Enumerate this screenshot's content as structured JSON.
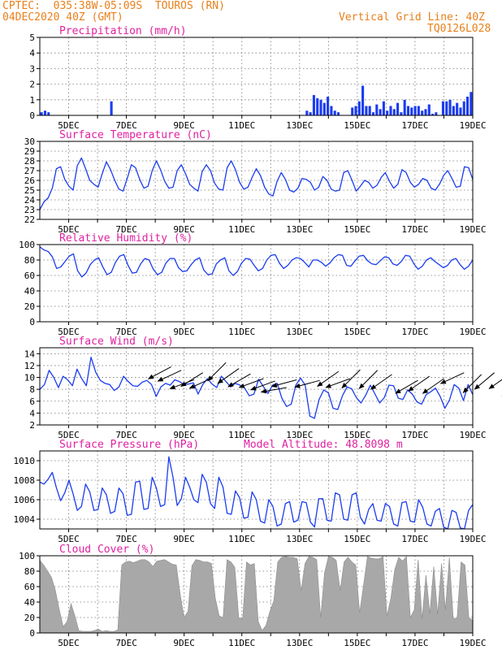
{
  "header": {
    "line1": "CPTEC:  035:38W-05:09S  TOUROS (RN)",
    "line2": "04DEC2020 40Z (GMT)",
    "right1": "Vertical Grid Line: 40Z",
    "right2": "TQ0126L028"
  },
  "colors": {
    "header": "#e8801c",
    "title": "#e020a0",
    "series": "#1a3cf0",
    "fill": "#a8a8a8",
    "arrow": "#000000"
  },
  "x_axis": {
    "range": [
      "2020-12-04T00",
      "2020-12-19T00"
    ],
    "tick_labels": [
      "5DEC",
      "7DEC",
      "9DEC",
      "11DEC",
      "13DEC",
      "15DEC",
      "17DEC",
      "19DEC"
    ]
  },
  "chart_data": [
    {
      "type": "bar",
      "title": "Precipitation (mm/h)",
      "ylim": [
        0,
        5
      ],
      "yticks": [
        "0",
        "1",
        "2",
        "3",
        "4",
        "5"
      ],
      "x_start": "2020-12-04T00",
      "step_hours": 3,
      "values": [
        0.2,
        0.3,
        0.2,
        0,
        0,
        0,
        0,
        0,
        0,
        0,
        0,
        0,
        0,
        0,
        0,
        0,
        0,
        0,
        0,
        0,
        0.9,
        0,
        0,
        0,
        0,
        0,
        0,
        0,
        0,
        0,
        0,
        0,
        0,
        0,
        0,
        0,
        0,
        0,
        0,
        0,
        0,
        0,
        0,
        0,
        0,
        0,
        0,
        0,
        0,
        0,
        0,
        0,
        0,
        0,
        0,
        0,
        0,
        0,
        0,
        0,
        0,
        0,
        0,
        0,
        0,
        0,
        0,
        0,
        0,
        0,
        0,
        0,
        0,
        0,
        0,
        0,
        0.3,
        0.2,
        1.3,
        1.1,
        1.0,
        0.8,
        1.2,
        0.6,
        0.3,
        0.2,
        0,
        0,
        0,
        0.5,
        0.6,
        0.9,
        1.9,
        0.6,
        0.6,
        0.2,
        0.7,
        0.4,
        0.9,
        0.3,
        0.6,
        0.4,
        0.8,
        0.2,
        1.0,
        0.6,
        0.5,
        0.6,
        0.6,
        0.3,
        0.4,
        0.7,
        0.1,
        0.2,
        0,
        0.9,
        0.9,
        1.0,
        0.6,
        0.8,
        0.5,
        0.9,
        1.2,
        1.5
      ]
    },
    {
      "type": "line",
      "title": "Surface Temperature (nC)",
      "ylim": [
        22,
        30
      ],
      "yticks": [
        "22",
        "23",
        "24",
        "25",
        "26",
        "27",
        "28",
        "29",
        "30"
      ],
      "x_start": "2020-12-04T00",
      "step_hours": 3,
      "values": [
        23.0,
        23.8,
        24.2,
        25.2,
        27.2,
        27.4,
        26.1,
        25.4,
        25.0,
        27.5,
        28.3,
        27.2,
        26.0,
        25.6,
        25.3,
        26.7,
        27.9,
        27.1,
        26.0,
        25.1,
        24.9,
        26.2,
        27.6,
        27.3,
        26.1,
        25.2,
        25.4,
        27.0,
        28.0,
        27.1,
        25.9,
        25.2,
        25.3,
        27.0,
        27.6,
        26.7,
        25.6,
        25.2,
        24.9,
        26.9,
        27.6,
        27.0,
        25.7,
        25.1,
        25.0,
        27.3,
        28.0,
        27.1,
        25.8,
        25.1,
        25.3,
        26.3,
        27.2,
        26.5,
        25.3,
        24.6,
        24.4,
        25.9,
        26.8,
        26.1,
        25.0,
        24.8,
        25.2,
        26.2,
        26.1,
        25.8,
        25.0,
        25.3,
        26.4,
        26.0,
        25.1,
        24.9,
        25.0,
        26.8,
        27.0,
        26.0,
        24.9,
        25.4,
        26.0,
        25.8,
        25.2,
        25.5,
        26.3,
        26.8,
        25.9,
        25.2,
        25.6,
        27.1,
        26.8,
        25.8,
        25.3,
        25.6,
        26.2,
        26.0,
        25.2,
        25.0,
        25.6,
        26.5,
        27.0,
        26.2,
        25.3,
        25.4,
        27.4,
        27.3,
        26.1
      ]
    },
    {
      "type": "line",
      "title": "Relative Humidity (%)",
      "ylim": [
        0,
        100
      ],
      "yticks": [
        "0",
        "20",
        "40",
        "60",
        "80",
        "100"
      ],
      "x_start": "2020-12-04T00",
      "step_hours": 3,
      "values": [
        97,
        93,
        91,
        84,
        69,
        71,
        78,
        85,
        88,
        66,
        58,
        63,
        74,
        80,
        83,
        71,
        61,
        64,
        77,
        85,
        87,
        73,
        63,
        64,
        75,
        82,
        80,
        68,
        61,
        64,
        76,
        82,
        82,
        70,
        65,
        66,
        74,
        80,
        83,
        67,
        61,
        62,
        75,
        80,
        83,
        66,
        60,
        65,
        76,
        82,
        81,
        73,
        66,
        69,
        80,
        86,
        87,
        76,
        69,
        73,
        80,
        83,
        82,
        77,
        71,
        80,
        80,
        77,
        72,
        76,
        83,
        87,
        86,
        73,
        72,
        79,
        85,
        86,
        79,
        75,
        74,
        79,
        84,
        83,
        75,
        73,
        78,
        86,
        85,
        75,
        68,
        72,
        80,
        83,
        78,
        74,
        70,
        73,
        80,
        82,
        74,
        68,
        72,
        80
      ]
    },
    {
      "type": "line",
      "title": "Surface Wind (m/s)",
      "ylim": [
        2,
        15
      ],
      "yticks": [
        "2",
        "4",
        "6",
        "8",
        "10",
        "12",
        "14"
      ],
      "x_start": "2020-12-04T00",
      "step_hours": 3,
      "values": [
        8.0,
        8.8,
        11.2,
        10.0,
        8.3,
        10.2,
        9.6,
        8.6,
        11.4,
        9.8,
        8.6,
        13.4,
        10.9,
        9.5,
        9.0,
        8.8,
        7.8,
        8.4,
        10.2,
        9.3,
        8.6,
        8.5,
        9.2,
        9.5,
        8.8,
        6.8,
        8.4,
        9.0,
        8.7,
        9.6,
        9.3,
        8.8,
        8.9,
        9.1,
        7.2,
        8.8,
        9.8,
        8.9,
        8.3,
        10.2,
        9.3,
        8.4,
        9.0,
        8.7,
        8.2,
        6.9,
        7.2,
        9.7,
        8.5,
        7.3,
        8.7,
        9.0,
        6.5,
        5.1,
        5.5,
        8.7,
        9.9,
        8.7,
        3.5,
        3.1,
        6.3,
        7.9,
        7.4,
        4.8,
        4.6,
        6.9,
        8.4,
        8.1,
        6.6,
        5.7,
        7.0,
        8.7,
        7.2,
        5.7,
        6.6,
        8.7,
        8.6,
        6.5,
        6.3,
        7.9,
        7.2,
        5.9,
        5.5,
        7.1,
        7.6,
        8.2,
        6.8,
        4.8,
        6.2,
        8.8,
        8.2,
        6.1,
        8.8,
        7.1
      ],
      "arrows": [
        {
          "day": 4.55,
          "speed": 11.8,
          "dir_deg": 208
        },
        {
          "day": 4.9,
          "speed": 11.2,
          "dir_deg": 205
        },
        {
          "day": 5.35,
          "speed": 9.6,
          "dir_deg": 200
        },
        {
          "day": 5.65,
          "speed": 10.8,
          "dir_deg": 212
        },
        {
          "day": 6.0,
          "speed": 10.0,
          "dir_deg": 205
        },
        {
          "day": 6.45,
          "speed": 12.5,
          "dir_deg": 225
        },
        {
          "day": 6.9,
          "speed": 11.5,
          "dir_deg": 215
        },
        {
          "day": 7.3,
          "speed": 10.6,
          "dir_deg": 210
        },
        {
          "day": 7.75,
          "speed": 9.8,
          "dir_deg": 200
        },
        {
          "day": 8.15,
          "speed": 9.4,
          "dir_deg": 200
        },
        {
          "day": 8.55,
          "speed": 8.3,
          "dir_deg": 190
        },
        {
          "day": 8.9,
          "speed": 9.6,
          "dir_deg": 195
        },
        {
          "day": 9.7,
          "speed": 9.5,
          "dir_deg": 195
        },
        {
          "day": 10.35,
          "speed": 11.0,
          "dir_deg": 215
        },
        {
          "day": 10.75,
          "speed": 9.8,
          "dir_deg": 200
        },
        {
          "day": 11.1,
          "speed": 11.3,
          "dir_deg": 225
        },
        {
          "day": 11.7,
          "speed": 11.2,
          "dir_deg": 225
        },
        {
          "day": 12.2,
          "speed": 10.5,
          "dir_deg": 215
        },
        {
          "day": 13.1,
          "speed": 9.5,
          "dir_deg": 210
        },
        {
          "day": 13.5,
          "speed": 10.2,
          "dir_deg": 215
        },
        {
          "day": 14.0,
          "speed": 9.8,
          "dir_deg": 215
        },
        {
          "day": 14.7,
          "speed": 10.8,
          "dir_deg": 205
        },
        {
          "day": 15.3,
          "speed": 10.5,
          "dir_deg": 225
        },
        {
          "day": 15.75,
          "speed": 10.8,
          "dir_deg": 220
        },
        {
          "day": 16.3,
          "speed": 10.6,
          "dir_deg": 215
        },
        {
          "day": 16.65,
          "speed": 9.9,
          "dir_deg": 225
        },
        {
          "day": 17.55,
          "speed": 10.5,
          "dir_deg": 240
        },
        {
          "day": 17.85,
          "speed": 8.8,
          "dir_deg": 215
        },
        {
          "day": 18.0,
          "speed": 7.8,
          "dir_deg": 240
        }
      ]
    },
    {
      "type": "line",
      "title": "Surface Pressure (hPa)",
      "annotation": "Model Altitude: 48.8098 m",
      "ylim": [
        1003,
        1011
      ],
      "yticks": [
        "1004",
        "1006",
        "1008",
        "1010"
      ],
      "x_start": "2020-12-04T00",
      "step_hours": 3,
      "values": [
        1007.8,
        1007.6,
        1008.1,
        1008.8,
        1007.2,
        1005.9,
        1006.7,
        1008.0,
        1006.6,
        1004.9,
        1005.3,
        1007.6,
        1006.8,
        1004.9,
        1005.0,
        1007.2,
        1006.5,
        1004.6,
        1004.8,
        1007.2,
        1006.6,
        1004.4,
        1004.5,
        1007.8,
        1007.9,
        1005.0,
        1005.1,
        1008.3,
        1007.2,
        1005.3,
        1005.5,
        1010.4,
        1008.3,
        1005.4,
        1006.1,
        1008.3,
        1007.3,
        1006.0,
        1005.7,
        1008.6,
        1007.8,
        1005.6,
        1005.1,
        1008.3,
        1007.3,
        1004.6,
        1004.5,
        1006.9,
        1006.2,
        1004.1,
        1004.2,
        1006.8,
        1006.0,
        1003.8,
        1003.6,
        1006.0,
        1005.3,
        1003.3,
        1003.5,
        1005.6,
        1005.8,
        1003.7,
        1003.9,
        1005.8,
        1005.7,
        1003.7,
        1003.2,
        1006.1,
        1006.1,
        1003.9,
        1003.8,
        1006.7,
        1006.5,
        1004.0,
        1003.9,
        1006.5,
        1006.7,
        1004.2,
        1003.5,
        1005.0,
        1005.6,
        1003.9,
        1003.8,
        1005.6,
        1005.3,
        1003.5,
        1003.3,
        1005.7,
        1005.8,
        1003.8,
        1003.7,
        1006.0,
        1005.2,
        1003.5,
        1003.3,
        1004.8,
        1005.1,
        1003.2,
        1003.0,
        1004.9,
        1004.7,
        1003.1,
        1003.0,
        1004.9,
        1005.5
      ]
    },
    {
      "type": "area",
      "title": "Cloud Cover (%)",
      "ylim": [
        0,
        100
      ],
      "yticks": [
        "0",
        "20",
        "40",
        "60",
        "80",
        "100"
      ],
      "x_start": "2020-12-04T00",
      "step_hours": 3,
      "values": [
        94,
        88,
        80,
        72,
        55,
        30,
        8,
        15,
        38,
        22,
        3,
        2,
        2,
        2,
        3,
        5,
        2,
        3,
        2,
        2,
        4,
        88,
        92,
        93,
        91,
        93,
        95,
        95,
        92,
        86,
        93,
        94,
        95,
        92,
        89,
        88,
        50,
        20,
        28,
        87,
        95,
        94,
        92,
        92,
        90,
        45,
        22,
        20,
        95,
        92,
        85,
        20,
        18,
        92,
        88,
        90,
        15,
        3,
        10,
        28,
        42,
        92,
        98,
        99,
        98,
        98,
        96,
        55,
        90,
        99,
        98,
        95,
        20,
        78,
        99,
        98,
        94,
        55,
        92,
        98,
        92,
        88,
        26,
        62,
        99,
        97,
        96,
        96,
        99,
        22,
        45,
        82,
        98,
        93,
        99,
        20,
        30,
        95,
        18,
        75,
        25,
        86,
        24,
        90,
        30,
        98,
        18,
        20,
        92,
        88,
        20,
        16
      ]
    }
  ]
}
